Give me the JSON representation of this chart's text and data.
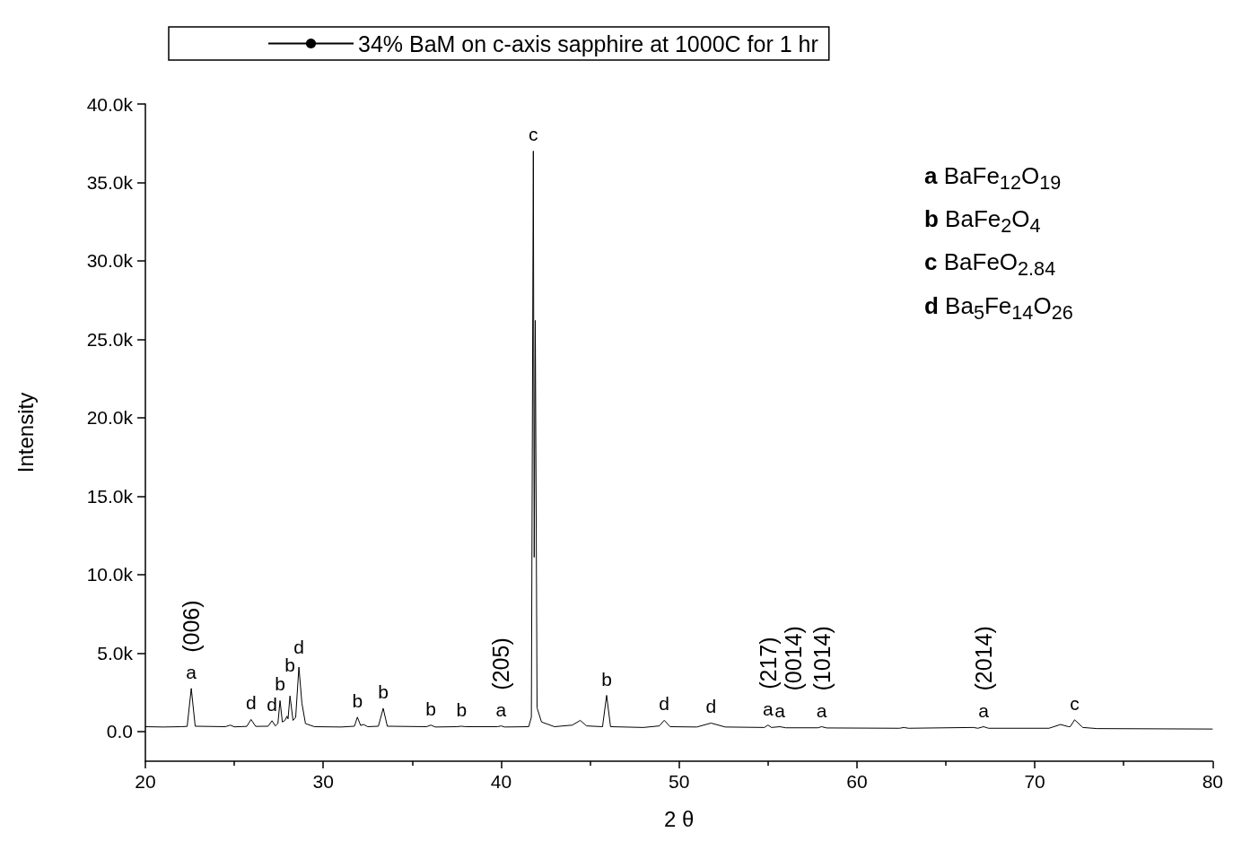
{
  "chart_data": {
    "type": "line",
    "xlabel": "2 θ",
    "ylabel": "Intensity",
    "xlim": [
      20,
      80
    ],
    "xticks": [
      20,
      30,
      40,
      50,
      60,
      70,
      80
    ],
    "ylim": [
      -1900,
      40000
    ],
    "yticks": [
      {
        "value": 0,
        "label": "0.0"
      },
      {
        "value": 5000,
        "label": "5.0k"
      },
      {
        "value": 10000,
        "label": "10.0k"
      },
      {
        "value": 15000,
        "label": "15.0k"
      },
      {
        "value": 20000,
        "label": "20.0k"
      },
      {
        "value": 25000,
        "label": "25.0k"
      },
      {
        "value": 30000,
        "label": "30.0k"
      },
      {
        "value": 35000,
        "label": "35.0k"
      },
      {
        "value": 40000,
        "label": "40.0k"
      }
    ],
    "grid": false,
    "legend": "top",
    "marker": "none",
    "line_style": "solid",
    "series": [
      {
        "name": "34% BaM on c-axis sapphire at 1000C for 1 hr",
        "color": "#000000",
        "x": [
          20,
          21,
          22,
          22.35,
          22.58,
          22.8,
          24.5,
          24.77,
          25.0,
          25.7,
          25.94,
          26.2,
          26.9,
          27.12,
          27.3,
          27.45,
          27.57,
          27.7,
          27.85,
          27.96,
          28.02,
          28.13,
          28.3,
          28.45,
          28.63,
          28.8,
          29.0,
          29.5,
          31.0,
          31.75,
          31.92,
          32.1,
          32.27,
          32.5,
          33.1,
          33.37,
          33.6,
          35.8,
          36.05,
          36.3,
          37.5,
          37.78,
          38.0,
          39.8,
          40.0,
          40.2,
          41.55,
          41.7,
          41.81,
          41.86,
          41.92,
          42.02,
          42.27,
          43.0,
          44.0,
          44.45,
          44.8,
          45.7,
          45.93,
          46.15,
          48.0,
          48.9,
          49.17,
          49.5,
          51.0,
          51.8,
          52.6,
          54.8,
          55.0,
          55.2,
          55.67,
          56.0,
          57.8,
          58.02,
          58.3,
          62.4,
          62.64,
          62.9,
          66.55,
          66.8,
          67.12,
          67.4,
          70.8,
          71.45,
          71.9,
          72.0,
          72.24,
          72.7,
          73.5,
          80
        ],
        "values": [
          300,
          280,
          300,
          320,
          2740,
          330,
          300,
          400,
          290,
          320,
          760,
          320,
          330,
          680,
          350,
          500,
          1960,
          600,
          700,
          970,
          800,
          2260,
          700,
          900,
          4100,
          1800,
          500,
          300,
          280,
          330,
          910,
          380,
          440,
          300,
          330,
          1470,
          330,
          300,
          400,
          280,
          300,
          330,
          300,
          300,
          350,
          280,
          300,
          900,
          37000,
          11100,
          26200,
          1500,
          600,
          300,
          400,
          700,
          350,
          300,
          2300,
          300,
          250,
          350,
          710,
          300,
          280,
          530,
          280,
          250,
          400,
          250,
          300,
          230,
          230,
          300,
          220,
          200,
          250,
          200,
          250,
          200,
          300,
          200,
          200,
          440,
          300,
          310,
          740,
          250,
          180,
          150
        ]
      }
    ],
    "annotations": [
      {
        "text": "a",
        "x": 22.58,
        "y": 2740
      },
      {
        "text": "d",
        "x": 25.94,
        "y": 760
      },
      {
        "text": "d",
        "x": 27.12,
        "y": 680
      },
      {
        "text": "b",
        "x": 27.57,
        "y": 1960
      },
      {
        "text": "b",
        "x": 28.13,
        "y": 2260
      },
      {
        "text": "d",
        "x": 28.63,
        "y": 4100
      },
      {
        "text": "b",
        "x": 31.92,
        "y": 910
      },
      {
        "text": "b",
        "x": 33.37,
        "y": 1470
      },
      {
        "text": "b",
        "x": 36.05,
        "y": 400
      },
      {
        "text": "b",
        "x": 37.78,
        "y": 330
      },
      {
        "text": "a",
        "x": 40.0,
        "y": 350
      },
      {
        "text": "c",
        "x": 41.81,
        "y": 37000
      },
      {
        "text": "b",
        "x": 45.93,
        "y": 2300
      },
      {
        "text": "d",
        "x": 49.17,
        "y": 710
      },
      {
        "text": "d",
        "x": 51.8,
        "y": 530
      },
      {
        "text": "a",
        "x": 55.0,
        "y": 400
      },
      {
        "text": "a",
        "x": 55.67,
        "y": 300
      },
      {
        "text": "a",
        "x": 58.02,
        "y": 300
      },
      {
        "text": "a",
        "x": 67.12,
        "y": 300
      },
      {
        "text": "c",
        "x": 72.24,
        "y": 740
      },
      {
        "text": "(006)",
        "x": 22.58,
        "y": 2740
      },
      {
        "text": "(205)",
        "x": 40.0,
        "y": 350
      },
      {
        "text": "(217)",
        "x": 55.0,
        "y": 400
      },
      {
        "text": "(0014)",
        "x": 55.67,
        "y": 300
      },
      {
        "text": "(1014)",
        "x": 58.02,
        "y": 300
      },
      {
        "text": "(2014)",
        "x": 67.12,
        "y": 300
      },
      "a BaFe$_{12}$O$_{19}$",
      "b BaFe$_{2}$O$_{4}$",
      "c BaFeO$_{2.84}$",
      "d Ba$_{5}$Fe$_{14}$O$_{26}$"
    ]
  }
}
